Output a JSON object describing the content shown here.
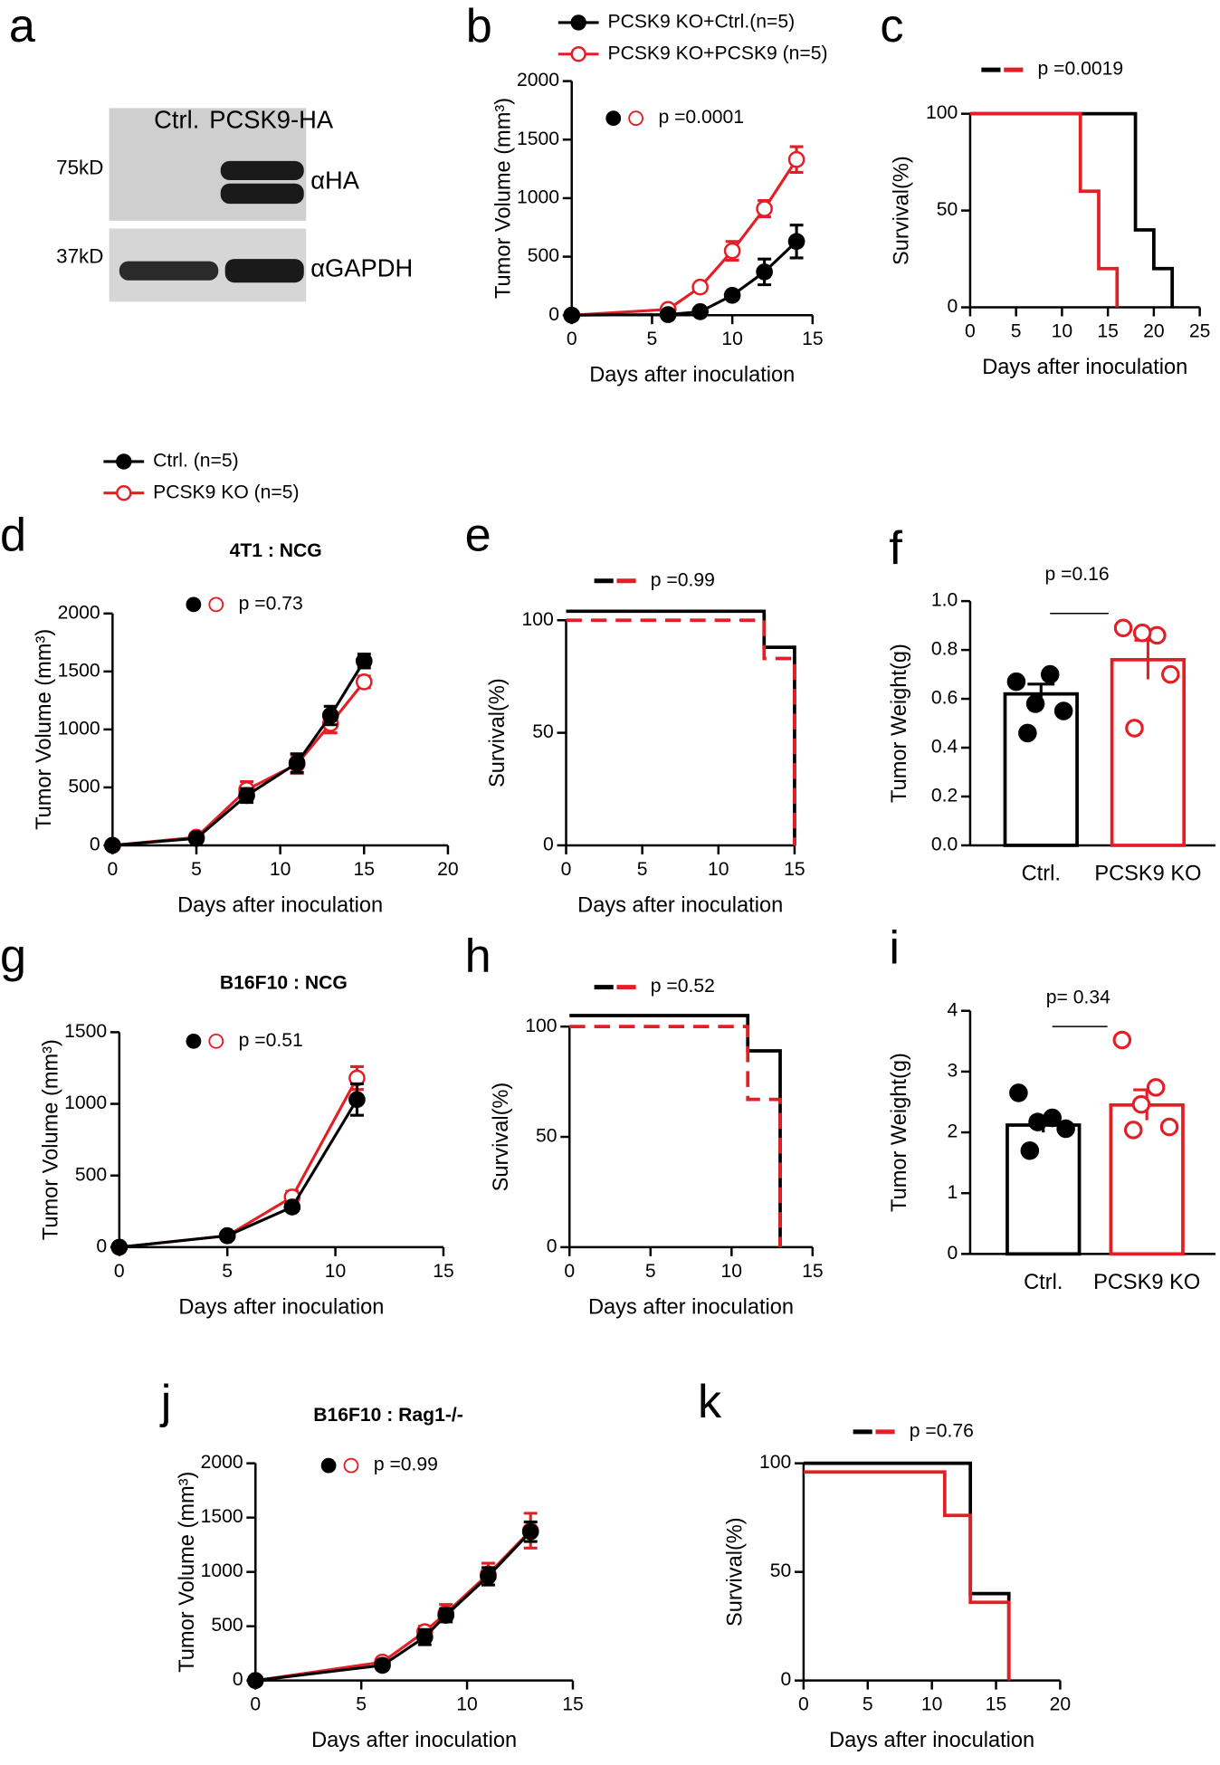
{
  "blot": {
    "panel": "a",
    "lanes": [
      "Ctrl.",
      "PCSK9-HA"
    ],
    "markers": [
      "75kD",
      "37kD"
    ],
    "antibodies": [
      "αHA",
      "αGAPDH"
    ]
  },
  "chart_data": [
    {
      "panel": "b",
      "type": "line",
      "xlabel": "Days after inoculation",
      "ylabel": "Tumor Volume (mm³)",
      "annotation": "p =0.0001",
      "xlim": [
        0,
        15
      ],
      "xticks": [
        0,
        5,
        10,
        15
      ],
      "ylim": [
        0,
        2000
      ],
      "yticks": [
        0,
        500,
        1000,
        1500,
        2000
      ],
      "series": [
        {
          "name": "PCSK9 KO+Ctrl.(n=5)",
          "color": "#000000",
          "marker": "filled",
          "x": [
            0,
            6,
            8,
            10,
            12,
            14
          ],
          "values": [
            0,
            5,
            30,
            170,
            370,
            630
          ],
          "errors": [
            0,
            5,
            10,
            30,
            110,
            140
          ]
        },
        {
          "name": "PCSK9 KO+PCSK9 (n=5)",
          "color": "#e41e25",
          "marker": "open",
          "x": [
            0,
            6,
            8,
            10,
            12,
            14
          ],
          "values": [
            0,
            50,
            240,
            550,
            910,
            1330
          ],
          "errors": [
            0,
            10,
            30,
            80,
            70,
            110
          ]
        }
      ]
    },
    {
      "panel": "c",
      "type": "step",
      "xlabel": "Days after inoculation",
      "ylabel": "Survival(%)",
      "annotation": "p =0.0019",
      "xlim": [
        0,
        25
      ],
      "xticks": [
        0,
        5,
        10,
        15,
        20,
        25
      ],
      "ylim": [
        0,
        100
      ],
      "yticks": [
        0,
        50,
        100
      ],
      "series": [
        {
          "color": "#000000",
          "x": [
            0,
            18,
            20,
            22
          ],
          "values": [
            100,
            40,
            20,
            0
          ]
        },
        {
          "color": "#e41e25",
          "x": [
            0,
            12,
            14,
            16
          ],
          "values": [
            100,
            60,
            20,
            0
          ]
        }
      ]
    },
    {
      "panel": "d",
      "type": "line",
      "title": "4T1 : NCG",
      "xlabel": "Days after inoculation",
      "ylabel": "Tumor Volume (mm³)",
      "annotation": "p =0.73",
      "xlim": [
        0,
        20
      ],
      "xticks": [
        0,
        5,
        10,
        15,
        20
      ],
      "ylim": [
        0,
        2000
      ],
      "yticks": [
        0,
        500,
        1000,
        1500,
        2000
      ],
      "series": [
        {
          "name": "Ctrl. (n=5)",
          "color": "#000000",
          "marker": "filled",
          "x": [
            0,
            5,
            8,
            11,
            13,
            15
          ],
          "values": [
            0,
            60,
            430,
            710,
            1120,
            1590
          ],
          "errors": [
            0,
            10,
            60,
            80,
            80,
            60
          ]
        },
        {
          "name": "PCSK9 KO (n=5)",
          "color": "#e41e25",
          "marker": "open",
          "x": [
            0,
            5,
            8,
            11,
            13,
            15
          ],
          "values": [
            0,
            70,
            480,
            700,
            1050,
            1410
          ],
          "errors": [
            0,
            10,
            70,
            80,
            80,
            50
          ]
        }
      ]
    },
    {
      "panel": "e",
      "type": "step",
      "xlabel": "Days after inoculation",
      "ylabel": "Survival(%)",
      "annotation": "p =0.99",
      "xlim": [
        0,
        15
      ],
      "xticks": [
        0,
        5,
        10,
        15
      ],
      "ylim": [
        0,
        100
      ],
      "yticks": [
        0,
        50,
        100
      ],
      "series": [
        {
          "color": "#000000",
          "x": [
            0,
            13,
            15
          ],
          "values": [
            104,
            88,
            0
          ]
        },
        {
          "color": "#e41e25",
          "dashed": true,
          "x": [
            0,
            13,
            15
          ],
          "values": [
            100,
            83,
            0
          ]
        }
      ]
    },
    {
      "panel": "f",
      "type": "bar",
      "ylabel": "Tumor Weight(g)",
      "annotation": "p =0.16",
      "categories": [
        "Ctrl.",
        "PCSK9 KO"
      ],
      "colors": [
        "#000000",
        "#e41e25"
      ],
      "values": [
        0.62,
        0.76
      ],
      "errors": [
        0.04,
        0.08
      ],
      "points": [
        [
          0.67,
          0.7,
          0.58,
          0.55,
          0.46
        ],
        [
          0.89,
          0.86,
          0.87,
          0.7,
          0.48
        ]
      ],
      "ylim": [
        0,
        1.0
      ],
      "yticks": [
        {
          "value": 0,
          "label": "0.0"
        },
        0.2,
        0.4,
        0.6,
        0.8,
        {
          "value": 1.0,
          "label": "1.0"
        }
      ]
    },
    {
      "panel": "g",
      "type": "line",
      "title": "B16F10 : NCG",
      "xlabel": "Days after inoculation",
      "ylabel": "Tumor Volume (mm³)",
      "annotation": "p =0.51",
      "xlim": [
        0,
        15
      ],
      "xticks": [
        0,
        5,
        10,
        15
      ],
      "ylim": [
        0,
        1500
      ],
      "yticks": [
        0,
        500,
        1000,
        1500
      ],
      "series": [
        {
          "color": "#000000",
          "marker": "filled",
          "x": [
            0,
            5,
            8,
            11
          ],
          "values": [
            0,
            80,
            280,
            1030
          ],
          "errors": [
            0,
            5,
            15,
            110
          ]
        },
        {
          "color": "#e41e25",
          "marker": "open",
          "x": [
            0,
            5,
            8,
            11
          ],
          "values": [
            0,
            80,
            350,
            1180
          ],
          "errors": [
            0,
            10,
            40,
            80
          ]
        }
      ]
    },
    {
      "panel": "h",
      "type": "step",
      "xlabel": "Days after inoculation",
      "ylabel": "Survival(%)",
      "annotation": "p =0.52",
      "xlim": [
        0,
        15
      ],
      "xticks": [
        0,
        5,
        10,
        15
      ],
      "ylim": [
        0,
        100
      ],
      "yticks": [
        0,
        50,
        100
      ],
      "series": [
        {
          "color": "#000000",
          "x": [
            0,
            11,
            13
          ],
          "values": [
            105,
            89,
            0
          ]
        },
        {
          "color": "#e41e25",
          "dashed": true,
          "x": [
            0,
            11,
            13
          ],
          "values": [
            100,
            67,
            0
          ]
        }
      ]
    },
    {
      "panel": "i",
      "type": "bar",
      "ylabel": "Tumor Weight(g)",
      "annotation": "p= 0.34",
      "categories": [
        "Ctrl.",
        "PCSK9 KO"
      ],
      "colors": [
        "#000000",
        "#e41e25"
      ],
      "values": [
        2.12,
        2.45
      ],
      "errors": [
        0.12,
        0.25
      ],
      "points": [
        [
          2.65,
          2.24,
          2.17,
          2.06,
          1.7
        ],
        [
          3.52,
          2.74,
          2.46,
          2.09,
          2.04
        ]
      ],
      "ylim": [
        0,
        4
      ],
      "yticks": [
        0,
        1,
        2,
        3,
        4
      ]
    },
    {
      "panel": "j",
      "type": "line",
      "title": "B16F10 : Rag1-/-",
      "xlabel": "Days after inoculation",
      "ylabel": "Tumor Volume (mm³)",
      "annotation": "p =0.99",
      "xlim": [
        0,
        15
      ],
      "xticks": [
        0,
        5,
        10,
        15
      ],
      "ylim": [
        0,
        2000
      ],
      "yticks": [
        0,
        500,
        1000,
        1500,
        2000
      ],
      "series": [
        {
          "color": "#000000",
          "marker": "filled",
          "x": [
            0,
            6,
            8,
            9,
            11,
            13
          ],
          "values": [
            0,
            140,
            400,
            600,
            960,
            1370
          ],
          "errors": [
            0,
            20,
            70,
            60,
            80,
            90
          ]
        },
        {
          "color": "#e41e25",
          "marker": "open",
          "x": [
            0,
            6,
            8,
            9,
            11,
            13
          ],
          "values": [
            0,
            170,
            450,
            620,
            980,
            1380
          ],
          "errors": [
            0,
            20,
            50,
            80,
            100,
            160
          ]
        }
      ]
    },
    {
      "panel": "k",
      "type": "step",
      "xlabel": "Days after inoculation",
      "ylabel": "Survival(%)",
      "annotation": "p =0.76",
      "xlim": [
        0,
        20
      ],
      "xticks": [
        0,
        5,
        10,
        15,
        20
      ],
      "ylim": [
        0,
        100
      ],
      "yticks": [
        0,
        50,
        100
      ],
      "series": [
        {
          "color": "#000000",
          "x": [
            0,
            13,
            16
          ],
          "values": [
            100,
            40,
            0
          ]
        },
        {
          "color": "#e41e25",
          "x": [
            0,
            11,
            13,
            16
          ],
          "values": [
            96,
            76,
            36,
            0
          ]
        }
      ]
    }
  ]
}
